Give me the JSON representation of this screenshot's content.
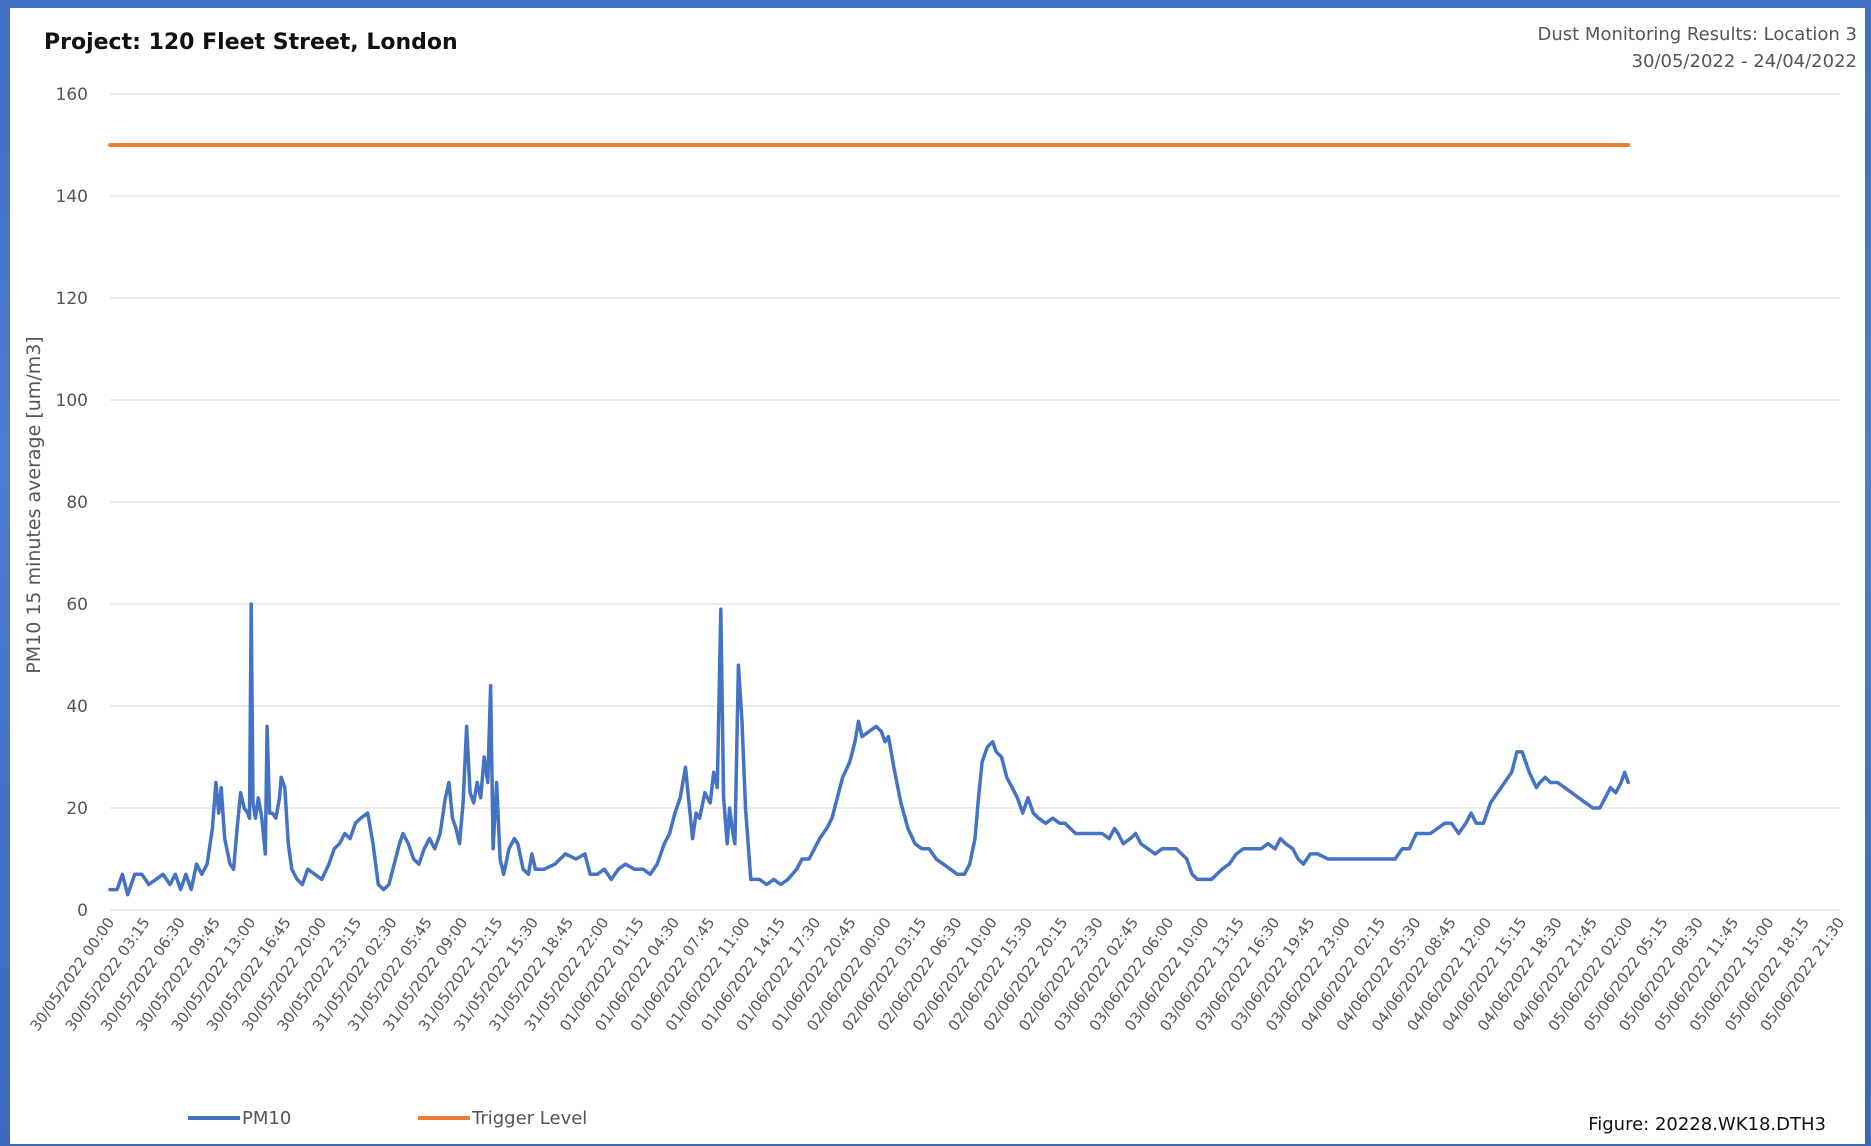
{
  "chart_data": {
    "type": "line",
    "title": "Project:  120 Fleet Street, London",
    "subtitle": [
      "Dust Monitoring Results: Location 3",
      "30/05/2022 - 24/04/2022"
    ],
    "ylabel": "PM10 15 minutes average [um/m3]",
    "xlabel": "",
    "ylim": [
      0,
      160
    ],
    "yticks": [
      0,
      20,
      40,
      60,
      80,
      100,
      120,
      140,
      160
    ],
    "grid": true,
    "legend_position": "bottom-left",
    "figure_label": "Figure: 20228.WK18.DTH3",
    "x_tick_labels": [
      "30/05/2022 00:00",
      "30/05/2022 03:15",
      "30/05/2022 06:30",
      "30/05/2022 09:45",
      "30/05/2022 13:00",
      "30/05/2022 16:45",
      "30/05/2022 20:00",
      "30/05/2022 23:15",
      "31/05/2022 02:30",
      "31/05/2022 05:45",
      "31/05/2022 09:00",
      "31/05/2022 12:15",
      "31/05/2022 15:30",
      "31/05/2022 18:45",
      "31/05/2022 22:00",
      "01/06/2022 01:15",
      "01/06/2022 04:30",
      "01/06/2022 07:45",
      "01/06/2022 11:00",
      "01/06/2022 14:15",
      "01/06/2022 17:30",
      "01/06/2022 20:45",
      "02/06/2022 00:00",
      "02/06/2022 03:15",
      "02/06/2022 06:30",
      "02/06/2022 10:00",
      "02/06/2022 15:30",
      "02/06/2022 20:15",
      "02/06/2022 23:30",
      "03/06/2022 02:45",
      "03/06/2022 06:00",
      "03/06/2022 10:00",
      "03/06/2022 13:15",
      "03/06/2022 16:30",
      "03/06/2022 19:45",
      "03/06/2022 23:00",
      "04/06/2022 02:15",
      "04/06/2022 05:30",
      "04/06/2022 08:45",
      "04/06/2022 12:00",
      "04/06/2022 15:15",
      "04/06/2022 18:30",
      "04/06/2022 21:45",
      "05/06/2022 02:00",
      "05/06/2022 05:15",
      "05/06/2022 08:30",
      "05/06/2022 11:45",
      "05/06/2022 15:00",
      "05/06/2022 18:15",
      "05/06/2022 21:30"
    ],
    "series": [
      {
        "name": "PM10",
        "color": "#4472c4",
        "points": [
          [
            0,
            4
          ],
          [
            0.2,
            4
          ],
          [
            0.35,
            7
          ],
          [
            0.5,
            3
          ],
          [
            0.7,
            7
          ],
          [
            0.9,
            7
          ],
          [
            1.1,
            5
          ],
          [
            1.3,
            6
          ],
          [
            1.5,
            7
          ],
          [
            1.7,
            5
          ],
          [
            1.85,
            7
          ],
          [
            2.0,
            4
          ],
          [
            2.15,
            7
          ],
          [
            2.3,
            4
          ],
          [
            2.45,
            9
          ],
          [
            2.6,
            7
          ],
          [
            2.75,
            9
          ],
          [
            2.9,
            16
          ],
          [
            3.0,
            25
          ],
          [
            3.08,
            19
          ],
          [
            3.15,
            24
          ],
          [
            3.25,
            14
          ],
          [
            3.4,
            9
          ],
          [
            3.5,
            8
          ],
          [
            3.6,
            16
          ],
          [
            3.7,
            23
          ],
          [
            3.8,
            20
          ],
          [
            3.9,
            19
          ],
          [
            3.95,
            18
          ],
          [
            4.0,
            60
          ],
          [
            4.05,
            21
          ],
          [
            4.12,
            18
          ],
          [
            4.2,
            22
          ],
          [
            4.3,
            18
          ],
          [
            4.4,
            11
          ],
          [
            4.45,
            36
          ],
          [
            4.52,
            19
          ],
          [
            4.6,
            19
          ],
          [
            4.7,
            18
          ],
          [
            4.8,
            22
          ],
          [
            4.85,
            26
          ],
          [
            4.95,
            24
          ],
          [
            5.05,
            13
          ],
          [
            5.15,
            8
          ],
          [
            5.3,
            6
          ],
          [
            5.45,
            5
          ],
          [
            5.6,
            8
          ],
          [
            5.8,
            7
          ],
          [
            6.0,
            6
          ],
          [
            6.2,
            9
          ],
          [
            6.35,
            12
          ],
          [
            6.5,
            13
          ],
          [
            6.65,
            15
          ],
          [
            6.8,
            14
          ],
          [
            6.95,
            17
          ],
          [
            7.1,
            18
          ],
          [
            7.3,
            19
          ],
          [
            7.45,
            13
          ],
          [
            7.6,
            5
          ],
          [
            7.75,
            4
          ],
          [
            7.9,
            5
          ],
          [
            8.05,
            9
          ],
          [
            8.2,
            13
          ],
          [
            8.3,
            15
          ],
          [
            8.45,
            13
          ],
          [
            8.6,
            10
          ],
          [
            8.75,
            9
          ],
          [
            8.9,
            12
          ],
          [
            9.05,
            14
          ],
          [
            9.2,
            12
          ],
          [
            9.35,
            15
          ],
          [
            9.5,
            22
          ],
          [
            9.6,
            25
          ],
          [
            9.7,
            18
          ],
          [
            9.8,
            16
          ],
          [
            9.9,
            13
          ],
          [
            10.0,
            21
          ],
          [
            10.1,
            36
          ],
          [
            10.2,
            23
          ],
          [
            10.3,
            21
          ],
          [
            10.4,
            25
          ],
          [
            10.5,
            22
          ],
          [
            10.6,
            30
          ],
          [
            10.7,
            25
          ],
          [
            10.78,
            44
          ],
          [
            10.85,
            12
          ],
          [
            10.95,
            25
          ],
          [
            11.05,
            10
          ],
          [
            11.15,
            7
          ],
          [
            11.3,
            12
          ],
          [
            11.45,
            14
          ],
          [
            11.55,
            13
          ],
          [
            11.7,
            8
          ],
          [
            11.85,
            7
          ],
          [
            11.95,
            11
          ],
          [
            12.05,
            8
          ],
          [
            12.3,
            8
          ],
          [
            12.6,
            9
          ],
          [
            12.9,
            11
          ],
          [
            13.2,
            10
          ],
          [
            13.45,
            11
          ],
          [
            13.6,
            7
          ],
          [
            13.8,
            7
          ],
          [
            14.0,
            8
          ],
          [
            14.2,
            6
          ],
          [
            14.4,
            8
          ],
          [
            14.6,
            9
          ],
          [
            14.85,
            8
          ],
          [
            15.1,
            8
          ],
          [
            15.3,
            7
          ],
          [
            15.5,
            9
          ],
          [
            15.7,
            13
          ],
          [
            15.85,
            15
          ],
          [
            16.0,
            19
          ],
          [
            16.15,
            22
          ],
          [
            16.3,
            28
          ],
          [
            16.4,
            21
          ],
          [
            16.5,
            14
          ],
          [
            16.6,
            19
          ],
          [
            16.7,
            18
          ],
          [
            16.85,
            23
          ],
          [
            17.0,
            21
          ],
          [
            17.1,
            27
          ],
          [
            17.2,
            24
          ],
          [
            17.3,
            59
          ],
          [
            17.38,
            22
          ],
          [
            17.48,
            13
          ],
          [
            17.55,
            20
          ],
          [
            17.62,
            16
          ],
          [
            17.7,
            13
          ],
          [
            17.8,
            48
          ],
          [
            17.9,
            37
          ],
          [
            18.0,
            20
          ],
          [
            18.15,
            6
          ],
          [
            18.4,
            6
          ],
          [
            18.6,
            5
          ],
          [
            18.8,
            6
          ],
          [
            19.0,
            5
          ],
          [
            19.2,
            6
          ],
          [
            19.45,
            8
          ],
          [
            19.6,
            10
          ],
          [
            19.8,
            10
          ],
          [
            19.95,
            12
          ],
          [
            20.1,
            14
          ],
          [
            20.3,
            16
          ],
          [
            20.45,
            18
          ],
          [
            20.6,
            22
          ],
          [
            20.75,
            26
          ],
          [
            20.95,
            29
          ],
          [
            21.1,
            33
          ],
          [
            21.2,
            37
          ],
          [
            21.3,
            34
          ],
          [
            21.5,
            35
          ],
          [
            21.7,
            36
          ],
          [
            21.85,
            35
          ],
          [
            21.95,
            33
          ],
          [
            22.05,
            34
          ],
          [
            22.2,
            28
          ],
          [
            22.4,
            21
          ],
          [
            22.6,
            16
          ],
          [
            22.8,
            13
          ],
          [
            23.0,
            12
          ],
          [
            23.2,
            12
          ],
          [
            23.4,
            10
          ],
          [
            23.6,
            9
          ],
          [
            23.8,
            8
          ],
          [
            24.0,
            7
          ],
          [
            24.2,
            7
          ],
          [
            24.35,
            9
          ],
          [
            24.5,
            14
          ],
          [
            24.6,
            22
          ],
          [
            24.7,
            29
          ],
          [
            24.85,
            32
          ],
          [
            25.0,
            33
          ],
          [
            25.1,
            31
          ],
          [
            25.25,
            30
          ],
          [
            25.4,
            26
          ],
          [
            25.55,
            24
          ],
          [
            25.7,
            22
          ],
          [
            25.85,
            19
          ],
          [
            26.0,
            22
          ],
          [
            26.15,
            19
          ],
          [
            26.3,
            18
          ],
          [
            26.5,
            17
          ],
          [
            26.7,
            18
          ],
          [
            26.9,
            17
          ],
          [
            27.05,
            17
          ],
          [
            27.2,
            16
          ],
          [
            27.35,
            15
          ],
          [
            27.6,
            15
          ],
          [
            27.9,
            15
          ],
          [
            28.1,
            15
          ],
          [
            28.3,
            14
          ],
          [
            28.45,
            16
          ],
          [
            28.55,
            15
          ],
          [
            28.7,
            13
          ],
          [
            28.9,
            14
          ],
          [
            29.05,
            15
          ],
          [
            29.2,
            13
          ],
          [
            29.4,
            12
          ],
          [
            29.6,
            11
          ],
          [
            29.8,
            12
          ],
          [
            30.0,
            12
          ],
          [
            30.2,
            12
          ],
          [
            30.35,
            11
          ],
          [
            30.5,
            10
          ],
          [
            30.65,
            7
          ],
          [
            30.8,
            6
          ],
          [
            31.0,
            6
          ],
          [
            31.2,
            6
          ],
          [
            31.35,
            7
          ],
          [
            31.5,
            8
          ],
          [
            31.7,
            9
          ],
          [
            31.9,
            11
          ],
          [
            32.1,
            12
          ],
          [
            32.4,
            12
          ],
          [
            32.6,
            12
          ],
          [
            32.8,
            13
          ],
          [
            33.0,
            12
          ],
          [
            33.15,
            14
          ],
          [
            33.3,
            13
          ],
          [
            33.5,
            12
          ],
          [
            33.65,
            10
          ],
          [
            33.8,
            9
          ],
          [
            34.0,
            11
          ],
          [
            34.2,
            11
          ],
          [
            34.5,
            10
          ],
          [
            34.8,
            10
          ],
          [
            35.1,
            10
          ],
          [
            35.4,
            10
          ],
          [
            35.6,
            10
          ],
          [
            35.8,
            10
          ],
          [
            36.0,
            10
          ],
          [
            36.2,
            10
          ],
          [
            36.4,
            10
          ],
          [
            36.6,
            12
          ],
          [
            36.8,
            12
          ],
          [
            37.0,
            15
          ],
          [
            37.2,
            15
          ],
          [
            37.4,
            15
          ],
          [
            37.6,
            16
          ],
          [
            37.8,
            17
          ],
          [
            38.0,
            17
          ],
          [
            38.2,
            15
          ],
          [
            38.4,
            17
          ],
          [
            38.55,
            19
          ],
          [
            38.7,
            17
          ],
          [
            38.9,
            17
          ],
          [
            39.1,
            21
          ],
          [
            39.3,
            23
          ],
          [
            39.5,
            25
          ],
          [
            39.7,
            27
          ],
          [
            39.85,
            31
          ],
          [
            40.0,
            31
          ],
          [
            40.2,
            27
          ],
          [
            40.4,
            24
          ],
          [
            40.5,
            25
          ],
          [
            40.65,
            26
          ],
          [
            40.8,
            25
          ],
          [
            41.0,
            25
          ],
          [
            41.2,
            24
          ],
          [
            41.4,
            23
          ],
          [
            41.6,
            22
          ],
          [
            41.8,
            21
          ],
          [
            42.0,
            20
          ],
          [
            42.2,
            20
          ],
          [
            42.35,
            22
          ],
          [
            42.5,
            24
          ],
          [
            42.65,
            23
          ],
          [
            42.8,
            25
          ],
          [
            42.9,
            27
          ],
          [
            43.0,
            25
          ]
        ]
      },
      {
        "name": "Trigger Level",
        "color": "#ed7d31",
        "points": [
          [
            0,
            150
          ],
          [
            43,
            150
          ]
        ]
      }
    ]
  }
}
